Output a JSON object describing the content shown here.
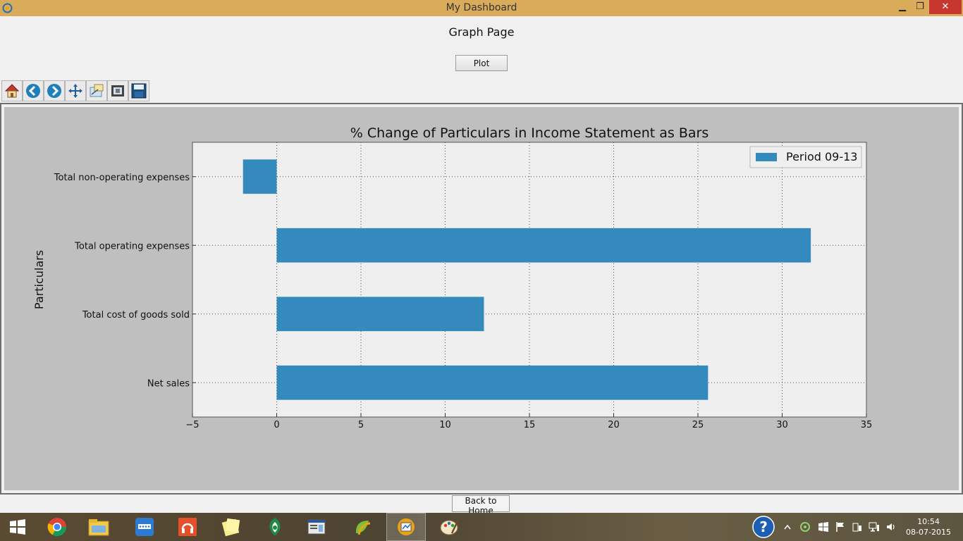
{
  "window": {
    "title": "My Dashboard",
    "minimize_glyph": "▁",
    "maximize_glyph": "❐",
    "close_glyph": "✕"
  },
  "page": {
    "heading": "Graph Page",
    "plot_label": "Plot",
    "back_label": "Back to Home"
  },
  "toolbar": {
    "tools": [
      {
        "name": "home-icon"
      },
      {
        "name": "back-arrow-icon"
      },
      {
        "name": "forward-arrow-icon"
      },
      {
        "name": "pan-icon"
      },
      {
        "name": "zoom-icon"
      },
      {
        "name": "subplots-config-icon"
      },
      {
        "name": "save-icon"
      }
    ]
  },
  "chart_data": {
    "type": "bar",
    "orientation": "horizontal",
    "title": "% Change of Particulars in Income Statement as Bars",
    "xlabel": "",
    "ylabel": "Particulars",
    "categories": [
      "Net sales",
      "Total cost of goods sold",
      "Total operating expenses",
      "Total non-operating expenses"
    ],
    "series": [
      {
        "name": "Period 09-13",
        "values": [
          25.6,
          12.3,
          31.7,
          -2.0
        ],
        "color": "#348abd"
      }
    ],
    "xlim": [
      -5,
      35
    ],
    "xticks": [
      -5,
      0,
      5,
      10,
      15,
      20,
      25,
      30,
      35
    ],
    "xtick_labels": [
      "−5",
      "0",
      "5",
      "10",
      "15",
      "20",
      "25",
      "30",
      "35"
    ],
    "grid": true,
    "legend_position": "top-right"
  },
  "taskbar": {
    "apps": [
      {
        "name": "start-icon"
      },
      {
        "name": "chrome-icon"
      },
      {
        "name": "file-explorer-icon"
      },
      {
        "name": "network-app-icon"
      },
      {
        "name": "music-app-icon"
      },
      {
        "name": "sticky-notes-icon"
      },
      {
        "name": "green-app-icon"
      },
      {
        "name": "document-app-icon"
      },
      {
        "name": "python-app-icon"
      },
      {
        "name": "dashboard-app-icon"
      },
      {
        "name": "paint-icon"
      }
    ],
    "clock_time": "10:54",
    "clock_date": "08-07-2015"
  }
}
